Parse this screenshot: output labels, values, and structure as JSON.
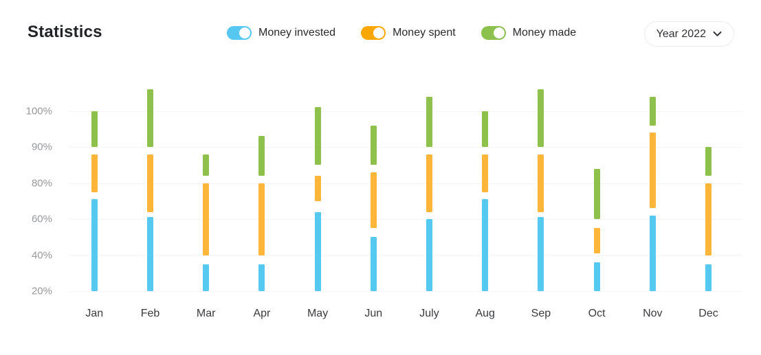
{
  "header": {
    "title": "Statistics",
    "year_selector": {
      "label": "Year 2022"
    }
  },
  "legend": {
    "items": [
      {
        "id": "invested",
        "label": "Money invested",
        "color": "#56c7f0"
      },
      {
        "id": "spent",
        "label": "Money spent",
        "color": "#f8a704"
      },
      {
        "id": "made",
        "label": "Money made",
        "color": "#8cc14e"
      }
    ]
  },
  "chart_data": {
    "type": "bar",
    "subtype": "floating-range-bars",
    "title": "Statistics",
    "xlabel": "",
    "ylabel": "",
    "categories": [
      "Jan",
      "Feb",
      "Mar",
      "Apr",
      "May",
      "Jun",
      "July",
      "Aug",
      "Sep",
      "Oct",
      "Nov",
      "Dec"
    ],
    "y_axis": {
      "unit": "%",
      "ticks": [
        20,
        40,
        60,
        80,
        90,
        100
      ],
      "tick_labels": [
        "20%",
        "40%",
        "60%",
        "80%",
        "90%",
        "100%"
      ],
      "note": "non-linear axis: gridlines equally spaced, steps of 20 up to 80 then steps of 10",
      "grid": true
    },
    "series": [
      {
        "name": "Money invested",
        "color": "#56c9f1",
        "ranges": [
          [
            20,
            71
          ],
          [
            20,
            61
          ],
          [
            20,
            35
          ],
          [
            20,
            35
          ],
          [
            20,
            64
          ],
          [
            20,
            50
          ],
          [
            20,
            60
          ],
          [
            20,
            71
          ],
          [
            20,
            61
          ],
          [
            20,
            36
          ],
          [
            20,
            62
          ],
          [
            20,
            35
          ]
        ]
      },
      {
        "name": "Money spent",
        "color": "#fdb63a",
        "ranges": [
          [
            75,
            88
          ],
          [
            64,
            88
          ],
          [
            40,
            80
          ],
          [
            40,
            80
          ],
          [
            70,
            82
          ],
          [
            55,
            83
          ],
          [
            64,
            88
          ],
          [
            75,
            88
          ],
          [
            64,
            88
          ],
          [
            41,
            55
          ],
          [
            66,
            94
          ],
          [
            40,
            80
          ]
        ]
      },
      {
        "name": "Money made",
        "color": "#8ec14c",
        "ranges": [
          [
            90,
            100
          ],
          [
            90,
            106
          ],
          [
            82,
            88
          ],
          [
            82,
            93
          ],
          [
            85,
            101
          ],
          [
            85,
            96
          ],
          [
            90,
            104
          ],
          [
            90,
            100
          ],
          [
            90,
            106
          ],
          [
            60,
            84
          ],
          [
            96,
            104
          ],
          [
            82,
            90
          ]
        ]
      }
    ],
    "legend_position": "top-center"
  }
}
